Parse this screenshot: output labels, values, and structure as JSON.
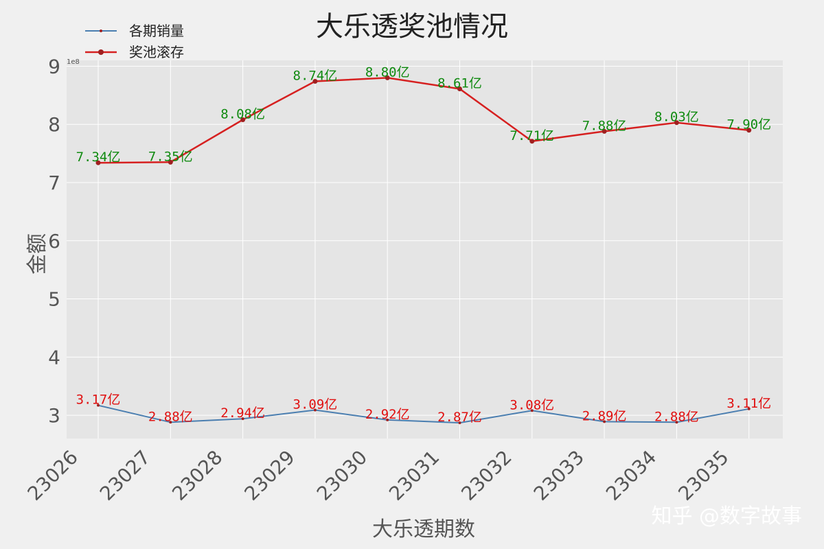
{
  "watermark": "知乎 @数字故事",
  "colors": {
    "background": "#f0f0f0",
    "plot_bg": "#e5e5e5",
    "grid": "#ffffff",
    "sales_line": "#4a7eb0",
    "pool_line": "#d62020",
    "sales_label": "#e01010",
    "pool_label": "#108a10",
    "marker_edge": "#a02020"
  },
  "chart_data": {
    "type": "line",
    "title": "大乐透奖池情况",
    "xlabel": "大乐透期数",
    "ylabel": "金额",
    "y_scale_note": "1e8",
    "categories": [
      "23026",
      "23027",
      "23028",
      "23029",
      "23030",
      "23031",
      "23032",
      "23033",
      "23034",
      "23035"
    ],
    "ylim": [
      2.6,
      9.1
    ],
    "yticks": [
      "3",
      "4",
      "5",
      "6",
      "7",
      "8",
      "9"
    ],
    "grid": true,
    "legend_position": "top-left",
    "series": [
      {
        "key": "sales",
        "name": "各期销量",
        "values": [
          3.17,
          2.88,
          2.94,
          3.09,
          2.92,
          2.87,
          3.08,
          2.89,
          2.88,
          3.11
        ],
        "labels": [
          "3.17亿",
          "2.88亿",
          "2.94亿",
          "3.09亿",
          "2.92亿",
          "2.87亿",
          "3.08亿",
          "2.89亿",
          "2.88亿",
          "3.11亿"
        ]
      },
      {
        "key": "pool",
        "name": "奖池滚存",
        "values": [
          7.34,
          7.35,
          8.08,
          8.74,
          8.8,
          8.61,
          7.71,
          7.88,
          8.03,
          7.9
        ],
        "labels": [
          "7.34亿",
          "7.35亿",
          "8.08亿",
          "8.74亿",
          "8.80亿",
          "8.61亿",
          "7.71亿",
          "7.88亿",
          "8.03亿",
          "7.90亿"
        ]
      }
    ]
  }
}
